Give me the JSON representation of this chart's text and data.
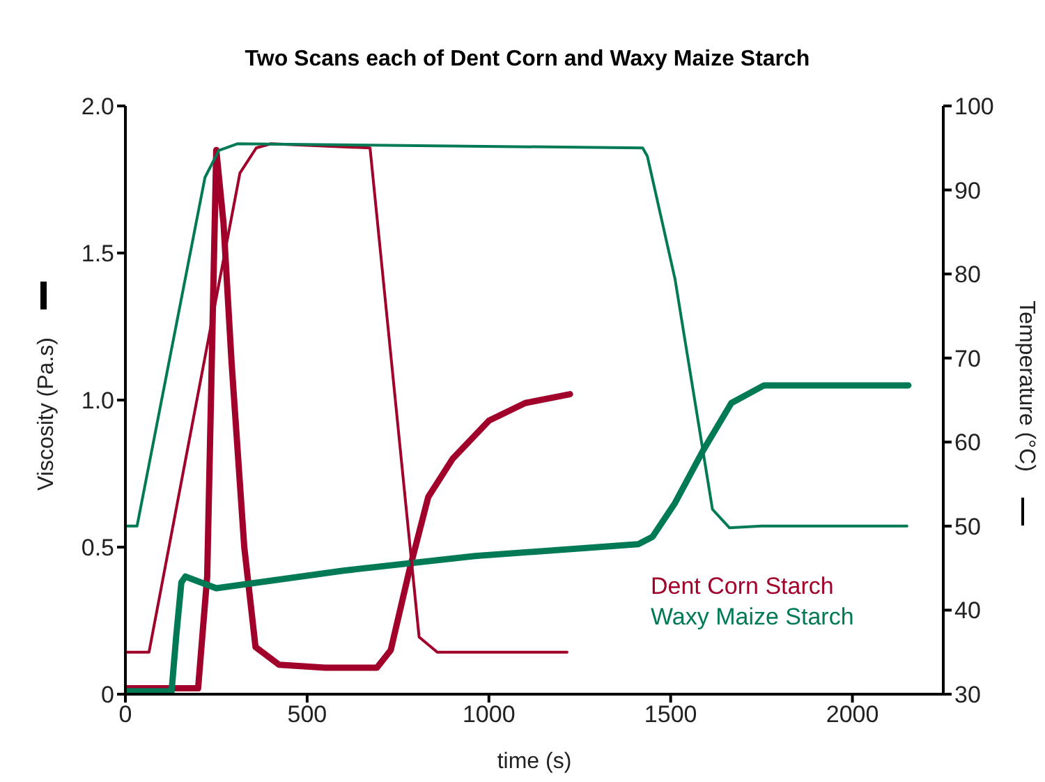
{
  "chart_data": {
    "type": "line",
    "title": "Two Scans each of Dent Corn and Waxy Maize Starch",
    "xlabel": "time (s)",
    "ylabel": "Viscosity (Pa.s)",
    "y2label": "Temperature (°C)",
    "xlim": [
      0,
      2250
    ],
    "xticks": [
      0,
      500,
      1000,
      1500,
      2000
    ],
    "ylim": [
      0,
      2
    ],
    "yticks": [
      0,
      0.5,
      {
        "value": 1,
        "label": "1.0"
      },
      1.5,
      {
        "value": 2,
        "label": "2.0"
      }
    ],
    "y2lim": [
      30,
      100
    ],
    "y2ticks": [
      30,
      40,
      50,
      60,
      70,
      80,
      90,
      100
    ],
    "grid": false,
    "legend": "bottom right",
    "marker": "none",
    "line_style": "solid",
    "series": [
      {
        "name": "Dent Corn Starch",
        "color": "#a0002a",
        "x": [
          0,
          200,
          225,
          250,
          270,
          292,
          327,
          358,
          423,
          550,
          692,
          730,
          781,
          833,
          900,
          1000,
          1100,
          1223
        ],
        "values": [
          0.02,
          0.02,
          0.4,
          1.85,
          1.6,
          1.13,
          0.5,
          0.16,
          0.1,
          0.09,
          0.09,
          0.15,
          0.42,
          0.67,
          0.8,
          0.93,
          0.99,
          1.02
        ]
      },
      {
        "name": "Waxy Maize Starch",
        "color": "#007a55",
        "x": [
          0,
          127,
          140,
          154,
          165,
          250,
          600,
          962,
          1411,
          1450,
          1512,
          1590,
          1667,
          1757,
          2154
        ],
        "values": [
          0.01,
          0.01,
          0.2,
          0.38,
          0.4,
          0.36,
          0.42,
          0.47,
          0.51,
          0.535,
          0.65,
          0.83,
          0.99,
          1.05,
          1.05
        ]
      },
      {
        "axis": "y2",
        "color": "#a0002a",
        "x": [
          0,
          65,
          315,
          360,
          400,
          673,
          808,
          858,
          1000,
          1215
        ],
        "values": [
          35,
          35,
          92,
          95,
          95.5,
          95,
          36.8,
          35,
          35,
          35
        ]
      },
      {
        "axis": "y2",
        "color": "#007a55",
        "x": [
          0,
          32,
          219,
          257,
          308,
          1423,
          1436,
          1512,
          1615,
          1662,
          1750,
          2150
        ],
        "values": [
          50,
          50,
          91.5,
          94.7,
          95.5,
          95,
          94,
          79.4,
          52,
          49.8,
          50,
          50
        ]
      }
    ]
  }
}
